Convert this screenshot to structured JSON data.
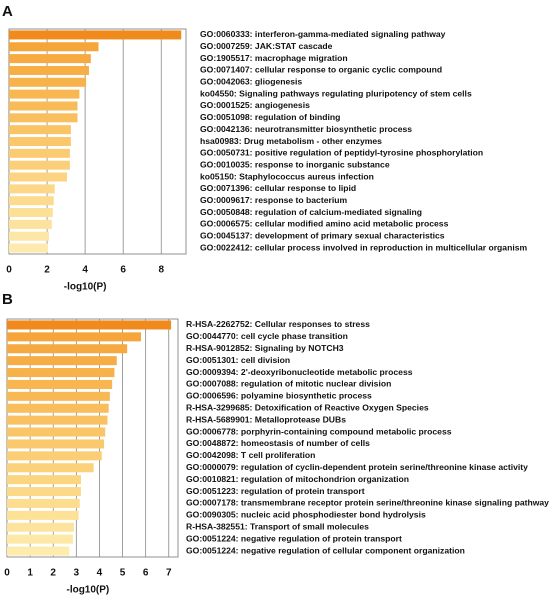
{
  "chart_data": [
    {
      "type": "bar",
      "orientation": "horizontal",
      "panel_label": "A",
      "xlabel": "-log10(P)",
      "categories": [
        "GO:0060333: interferon-gamma-mediated signaling pathway",
        "GO:0007259: JAK:STAT cascade",
        "GO:1905517: macrophage migration",
        "GO:0071407: cellular response to organic cyclic compound",
        "GO:0042063: gliogenesis",
        "ko04550: Signaling pathways regulating pluripotency of stem cells",
        "GO:0001525: angiogenesis",
        "GO:0051098: regulation of binding",
        "GO:0042136: neurotransmitter biosynthetic process",
        "hsa00983: Drug metabolism - other enzymes",
        "GO:0050731: positive regulation of peptidyl-tyrosine phosphorylation",
        "GO:0010035: response to inorganic substance",
        "ko05150: Staphylococcus aureus infection",
        "GO:0071396: cellular response to lipid",
        "GO:0009617: response to bacterium",
        "GO:0050848: regulation of calcium-mediated signaling",
        "GO:0006575: cellular modified amino acid metabolic process",
        "GO:0045137: development of primary sexual characteristics",
        "GO:0022412: cellular process involved in reproduction in multicellular organism"
      ],
      "values": [
        9.05,
        4.7,
        4.3,
        4.2,
        4.05,
        3.7,
        3.6,
        3.6,
        3.25,
        3.25,
        3.2,
        3.2,
        3.05,
        2.4,
        2.35,
        2.3,
        2.25,
        2.1,
        2.05
      ],
      "colors": [
        "#f08a1c",
        "#f5a53a",
        "#f6aa40",
        "#f7ae45",
        "#f8b24b",
        "#f8b751",
        "#f9bb57",
        "#f9bf5e",
        "#fac364",
        "#fac76b",
        "#fbcb72",
        "#fbcf79",
        "#fcd380",
        "#fcd787",
        "#fcdb8f",
        "#fddf96",
        "#fde29e",
        "#fde6a6",
        "#feeaae"
      ],
      "xlim": [
        0,
        9.3
      ],
      "xticks": [
        0,
        2,
        4,
        6,
        8
      ],
      "grid": true
    },
    {
      "type": "bar",
      "orientation": "horizontal",
      "panel_label": "B",
      "xlabel": "-log10(P)",
      "categories": [
        "R-HSA-2262752: Cellular responses to stress",
        "GO:0044770: cell cycle phase transition",
        "R-HSA-9012852: Signaling by NOTCH3",
        "GO:0051301: cell division",
        "GO:0009394: 2'-deoxyribonucleotide metabolic process",
        "GO:0007088: regulation of mitotic nuclear division",
        "GO:0006596: polyamine biosynthetic process",
        "R-HSA-3299685: Detoxification of Reactive Oxygen Species",
        "R-HSA-5689901: Metalloprotease DUBs",
        "GO:0006778: porphyrin-containing compound metabolic process",
        "GO:0048872: homeostasis of number of cells",
        "GO:0042098: T cell proliferation",
        "GO:0000079: regulation of cyclin-dependent protein serine/threonine kinase activity",
        "GO:0010821: regulation of mitochondrion organization",
        "GO:0051223: regulation of protein transport",
        "GO:0007178: transmembrane receptor protein serine/threonine kinase signaling pathway",
        "GO:0090305: nucleic acid phosphodiester bond hydrolysis",
        "R-HSA-382551: Transport of small molecules",
        "GO:0051224: negative regulation of protein transport",
        "GO:0051224: negative regulation of cellular component organization"
      ],
      "values": [
        7.1,
        5.8,
        5.2,
        4.75,
        4.65,
        4.55,
        4.45,
        4.4,
        4.35,
        4.25,
        4.2,
        4.1,
        3.75,
        3.2,
        3.2,
        3.15,
        3.1,
        2.9,
        2.85,
        2.7
      ],
      "colors": [
        "#f08a1c",
        "#f5a53a",
        "#f6a940",
        "#f6ad45",
        "#f7b14a",
        "#f8b550",
        "#f8b955",
        "#f9bd5b",
        "#f9c161",
        "#fac567",
        "#fac96d",
        "#fbcd74",
        "#fbd17a",
        "#fcd581",
        "#fcd988",
        "#fcdd8f",
        "#fde196",
        "#fde49e",
        "#fde8a5",
        "#feecad"
      ],
      "xlim": [
        0,
        7.4
      ],
      "xticks": [
        0,
        1,
        2,
        3,
        4,
        5,
        6,
        7
      ],
      "grid": true
    }
  ]
}
